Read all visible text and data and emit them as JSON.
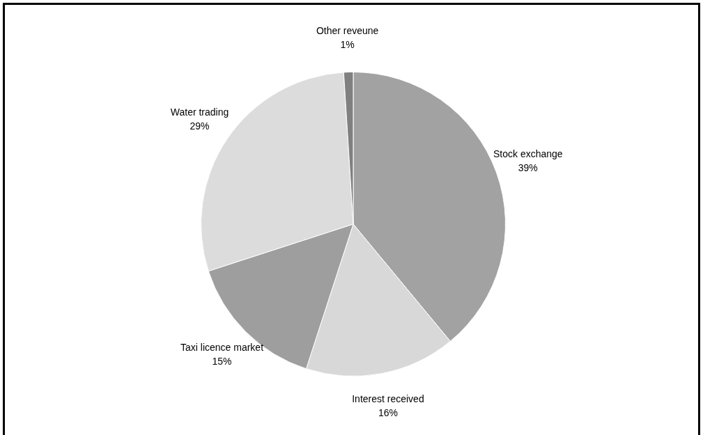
{
  "chart_data": {
    "type": "pie",
    "categories": [
      "Stock exchange",
      "Interest received",
      "Taxi licence market",
      "Water trading",
      "Other reveune"
    ],
    "values": [
      39,
      16,
      15,
      29,
      1
    ],
    "value_labels": [
      "39%",
      "16%",
      "15%",
      "29%",
      "1%"
    ],
    "colors": [
      "#a2a2a2",
      "#d8d8d8",
      "#9e9e9e",
      "#dcdcdc",
      "#808080"
    ],
    "legend": false
  }
}
